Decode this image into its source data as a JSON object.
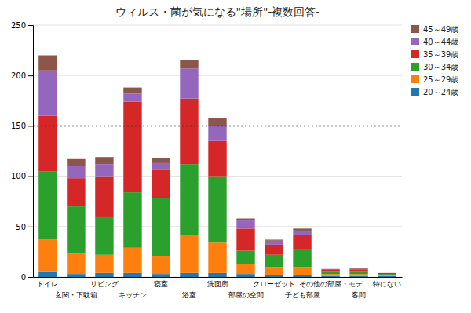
{
  "chart_data": {
    "type": "bar",
    "stacked": true,
    "title": "ウィルス・菌が気になる\"場所\"-複数回答-",
    "categories": [
      "トイレ",
      "玄関・下駄箱",
      "リビング",
      "キッチン",
      "寝室",
      "浴室",
      "洗面所",
      "部屋の空間",
      "クローゼット",
      "子ども部屋",
      "その他の部屋・モデ",
      "客間",
      "特にない"
    ],
    "series": [
      {
        "name": "20～24歳",
        "values": [
          5,
          3,
          4,
          4,
          3,
          4,
          4,
          3,
          2,
          2,
          1,
          1,
          1
        ]
      },
      {
        "name": "25～29歳",
        "values": [
          32,
          20,
          18,
          25,
          18,
          38,
          30,
          10,
          8,
          8,
          2,
          2,
          1
        ]
      },
      {
        "name": "30～34歳",
        "values": [
          68,
          47,
          38,
          55,
          57,
          70,
          66,
          13,
          12,
          18,
          2,
          2,
          1
        ]
      },
      {
        "name": "35～39歳",
        "values": [
          55,
          28,
          40,
          90,
          28,
          65,
          35,
          22,
          10,
          14,
          2,
          2,
          1
        ]
      },
      {
        "name": "40～44歳",
        "values": [
          45,
          12,
          12,
          8,
          7,
          30,
          15,
          8,
          4,
          4,
          1,
          1,
          0
        ]
      },
      {
        "name": "45～49歳",
        "values": [
          15,
          7,
          7,
          6,
          5,
          8,
          8,
          2,
          1,
          2,
          0,
          1,
          0
        ]
      }
    ],
    "hline": 150,
    "ylim": [
      0,
      250
    ],
    "yticks": [
      0,
      50,
      100,
      150,
      200,
      250
    ],
    "grid": true,
    "legend": "upper right"
  }
}
